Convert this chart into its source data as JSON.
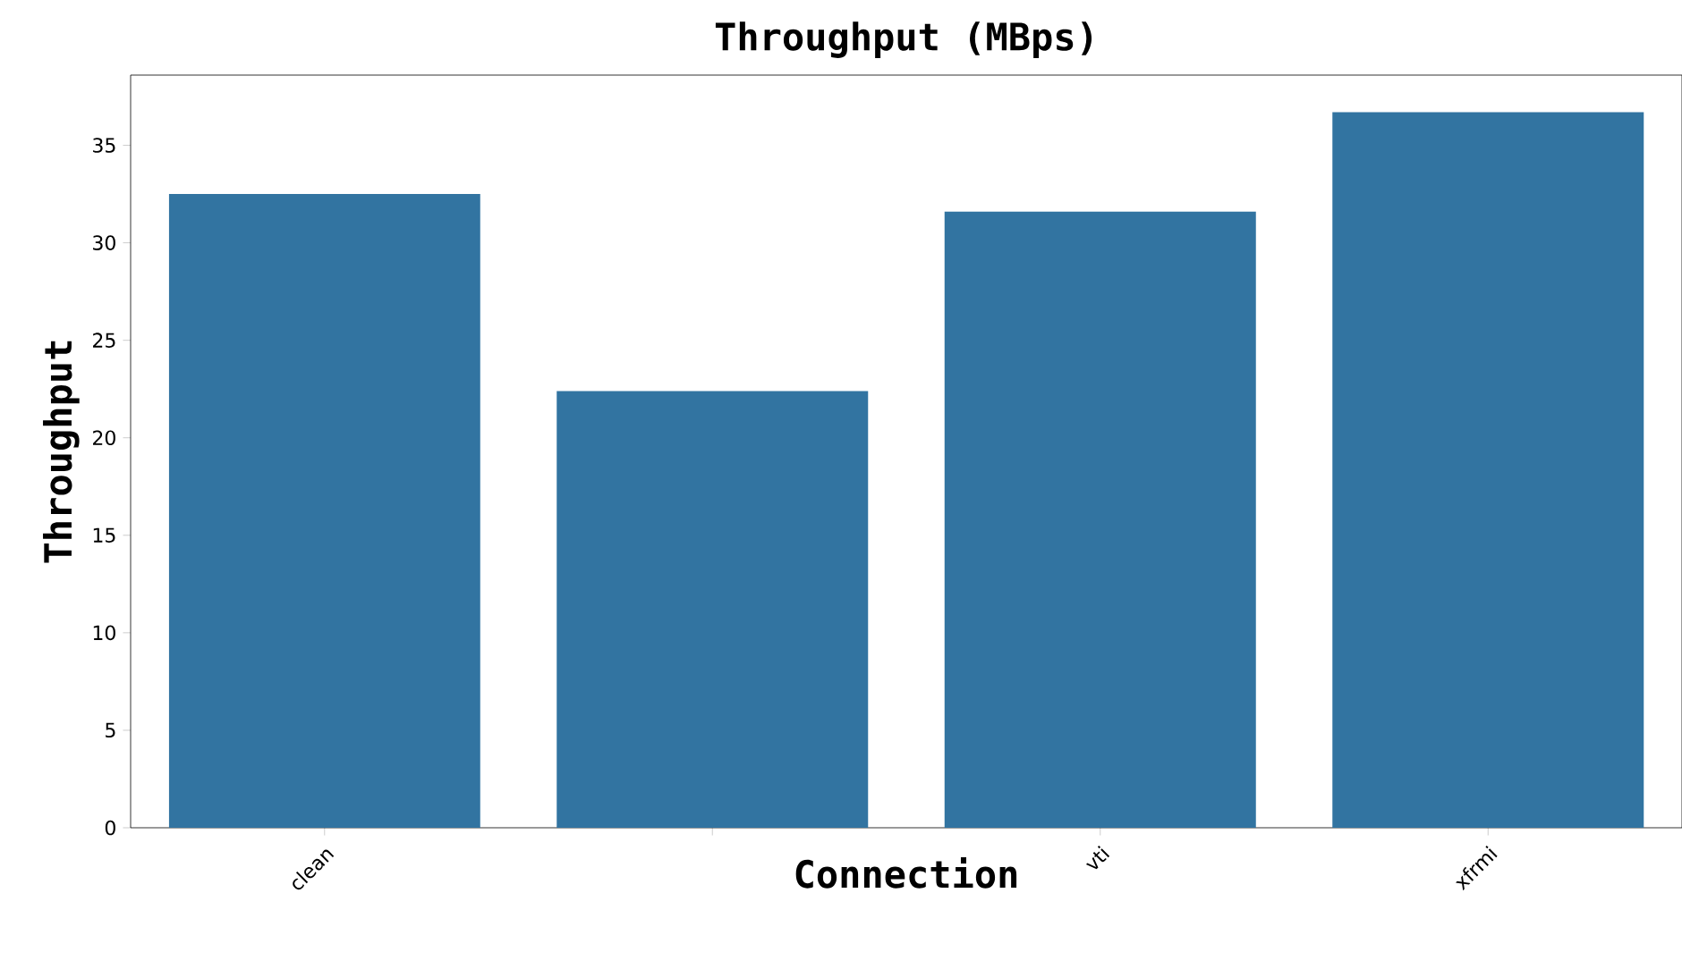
{
  "chart_data": {
    "type": "bar",
    "title": "Throughput (MBps)",
    "xlabel": "Connection",
    "ylabel": "Throughput",
    "categories": [
      "clean",
      null,
      "vti",
      "xfrmi"
    ],
    "values": [
      32.5,
      22.4,
      31.6,
      36.7
    ],
    "color": "#3274a1",
    "ylim": [
      0,
      38.6
    ],
    "yticks": [
      0,
      5,
      10,
      15,
      20,
      25,
      30,
      35
    ],
    "grid": false,
    "legend": false
  }
}
